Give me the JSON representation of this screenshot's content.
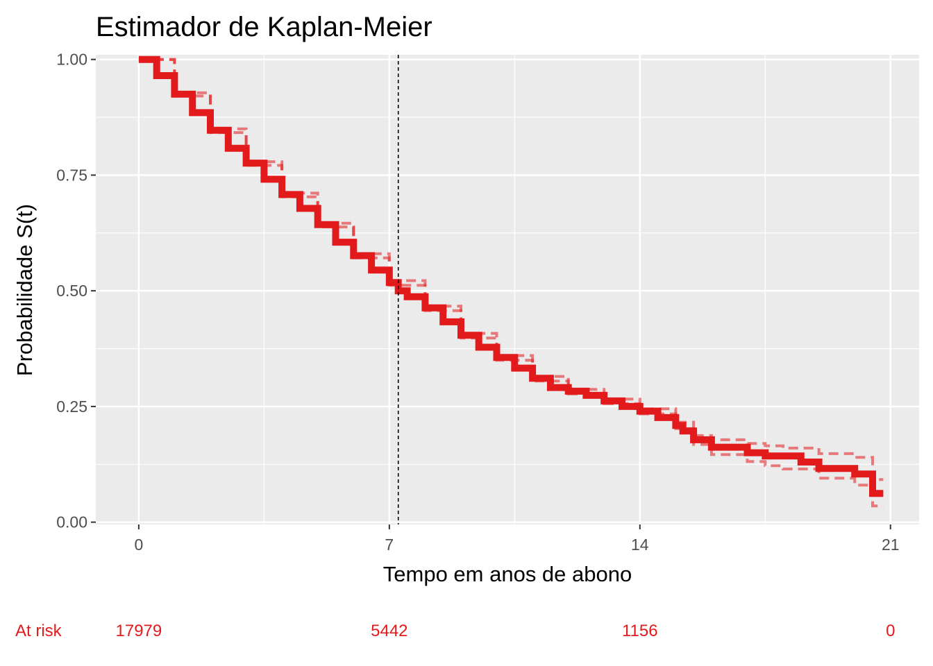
{
  "chart_data": {
    "type": "line",
    "title": "Estimador de Kaplan-Meier",
    "xlabel": "Tempo em anos de abono",
    "ylabel": "Probabilidade S(t)",
    "xlim": [
      -1.2,
      21.8
    ],
    "ylim": [
      -0.005,
      1.01
    ],
    "x_ticks": [
      0,
      7,
      14,
      21
    ],
    "x_tick_labels": [
      "0",
      "7",
      "14",
      "21"
    ],
    "y_ticks": [
      0,
      0.25,
      0.5,
      0.75,
      1.0
    ],
    "y_tick_labels": [
      "0.00",
      "0.25",
      "0.50",
      "0.75",
      "1.00"
    ],
    "grid": true,
    "background": "#ebebeb",
    "line_color": "#e31a1c",
    "median_x": 7.25,
    "median_line_style": "dashed",
    "series": [
      {
        "role": "estimate",
        "x": [
          0,
          0.5,
          1,
          1.5,
          2,
          2.5,
          3,
          3.5,
          4,
          4.5,
          5,
          5.5,
          6,
          6.5,
          7,
          7.25,
          7.5,
          8,
          8.5,
          9,
          9.5,
          10,
          10.5,
          11,
          11.5,
          12,
          12.5,
          13,
          13.5,
          14,
          14.5,
          15,
          15.2,
          15.5,
          16,
          16.5,
          17,
          17.5,
          18,
          18.5,
          19,
          19.5,
          20,
          20.2,
          20.5,
          20.8
        ],
        "y": [
          1.0,
          0.965,
          0.925,
          0.885,
          0.847,
          0.808,
          0.776,
          0.741,
          0.708,
          0.678,
          0.643,
          0.605,
          0.576,
          0.545,
          0.518,
          0.5,
          0.487,
          0.463,
          0.433,
          0.404,
          0.378,
          0.356,
          0.333,
          0.311,
          0.291,
          0.283,
          0.274,
          0.262,
          0.25,
          0.24,
          0.226,
          0.209,
          0.197,
          0.178,
          0.162,
          0.162,
          0.15,
          0.143,
          0.143,
          0.13,
          0.116,
          0.116,
          0.104,
          0.104,
          0.062,
          0.062
        ]
      },
      {
        "role": "upper-ci",
        "x": [
          0,
          1,
          2,
          3,
          4,
          5,
          6,
          7,
          8,
          9,
          10,
          11,
          12,
          13,
          14,
          15,
          15.5,
          16,
          16.5,
          17,
          17.5,
          18,
          18.5,
          19,
          19.5,
          20,
          20.2,
          20.5,
          20.8
        ],
        "y": [
          1.0,
          0.928,
          0.85,
          0.779,
          0.711,
          0.646,
          0.58,
          0.522,
          0.467,
          0.408,
          0.36,
          0.315,
          0.287,
          0.266,
          0.245,
          0.216,
          0.187,
          0.178,
          0.178,
          0.17,
          0.165,
          0.16,
          0.16,
          0.148,
          0.148,
          0.14,
          0.14,
          0.092,
          0.092
        ]
      },
      {
        "role": "lower-ci",
        "x": [
          0,
          1,
          2,
          3,
          4,
          5,
          6,
          7,
          8,
          9,
          10,
          11,
          12,
          13,
          14,
          15,
          15.5,
          16,
          16.5,
          17,
          17.5,
          18,
          18.5,
          19,
          19.5,
          20,
          20.2,
          20.5,
          20.8
        ],
        "y": [
          1.0,
          0.921,
          0.842,
          0.771,
          0.703,
          0.638,
          0.571,
          0.512,
          0.457,
          0.398,
          0.35,
          0.305,
          0.277,
          0.256,
          0.234,
          0.202,
          0.168,
          0.146,
          0.146,
          0.131,
          0.122,
          0.115,
          0.115,
          0.095,
          0.095,
          0.08,
          0.08,
          0.035,
          0.035
        ]
      }
    ],
    "risk_table": {
      "label": "At risk",
      "times": [
        0,
        7,
        14,
        21
      ],
      "counts": [
        "17979",
        "5442",
        "1156",
        "0"
      ]
    }
  }
}
